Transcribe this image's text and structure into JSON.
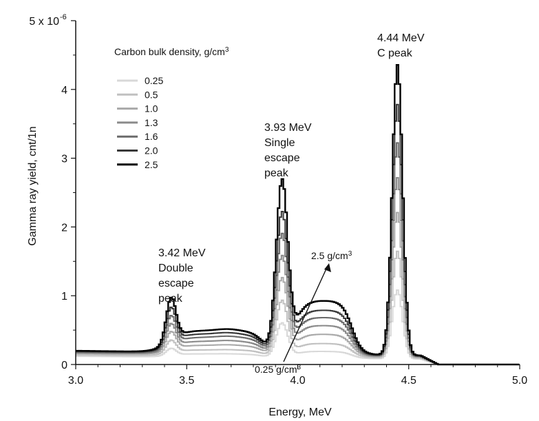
{
  "chart_data": {
    "type": "line",
    "title": "",
    "xlabel": "Energy, MeV",
    "ylabel": "Gamma ray yield, cnt/1n",
    "xlim": [
      3.0,
      5.0
    ],
    "ylim": [
      0,
      5e-06
    ],
    "x_ticks": [
      3.0,
      3.5,
      4.0,
      4.5,
      5.0
    ],
    "x_tick_labels": [
      "3.0",
      "3.5",
      "4.0",
      "4.5",
      "5.0"
    ],
    "y_ticks": [
      0,
      1e-06,
      2e-06,
      3e-06,
      4e-06,
      5e-06
    ],
    "y_tick_labels": [
      "0",
      "1",
      "2",
      "3",
      "4",
      "5 x 10"
    ],
    "y_exponent": "-6",
    "grid": false,
    "legend": {
      "title": "Carbon bulk density, g/cm",
      "title_sup": "3",
      "placement": "top-left"
    },
    "annotations": {
      "c_peak_energy": "4.44 MeV",
      "c_peak_label": "C peak",
      "single_energy": "3.93 MeV",
      "single_line1": "Single",
      "single_line2": "escape",
      "single_line3": "peak",
      "double_energy": "3.42 MeV",
      "double_line1": "Double",
      "double_line2": "escape",
      "double_line3": "peak",
      "arrow_top": "2.5 g/cm",
      "arrow_top_sup": "3",
      "arrow_bottom": "0.25 g/cm",
      "arrow_bottom_sup": "3"
    },
    "series": [
      {
        "name": "0.25",
        "color": "#d8d8d8",
        "baseline": 1.2e-07,
        "shoulder1": 5e-08,
        "double_peak": 1e-07,
        "single_peak": 5e-07,
        "shoulder2": 1e-07,
        "c_peak": 1e-06
      },
      {
        "name": "0.5",
        "color": "#c0c0c0",
        "baseline": 1.4e-07,
        "shoulder1": 9e-08,
        "double_peak": 1.8e-07,
        "single_peak": 8e-07,
        "shoulder2": 2e-07,
        "c_peak": 1.55e-06
      },
      {
        "name": "1.0",
        "color": "#a8a8a8",
        "baseline": 1.6e-07,
        "shoulder1": 1.4e-07,
        "double_peak": 2.6e-07,
        "single_peak": 1.1e-06,
        "shoulder2": 3.2e-07,
        "c_peak": 2.1e-06
      },
      {
        "name": "1.3",
        "color": "#8a8a8a",
        "baseline": 1.7e-07,
        "shoulder1": 1.9e-07,
        "double_peak": 3.4e-07,
        "single_peak": 1.4e-06,
        "shoulder2": 4.4e-07,
        "c_peak": 2.6e-06
      },
      {
        "name": "1.6",
        "color": "#6b6b6b",
        "baseline": 1.8e-07,
        "shoulder1": 2.4e-07,
        "double_peak": 4.2e-07,
        "single_peak": 1.7e-06,
        "shoulder2": 5.5e-07,
        "c_peak": 3.1e-06
      },
      {
        "name": "2.0",
        "color": "#383838",
        "baseline": 1.9e-07,
        "shoulder1": 2.8e-07,
        "double_peak": 5.1e-07,
        "single_peak": 2e-06,
        "shoulder2": 6.5e-07,
        "c_peak": 3.65e-06
      },
      {
        "name": "2.5",
        "color": "#000000",
        "baseline": 2e-07,
        "shoulder1": 3.2e-07,
        "double_peak": 6.2e-07,
        "single_peak": 2.45e-06,
        "shoulder2": 7.8e-07,
        "c_peak": 4.22e-06
      }
    ]
  }
}
